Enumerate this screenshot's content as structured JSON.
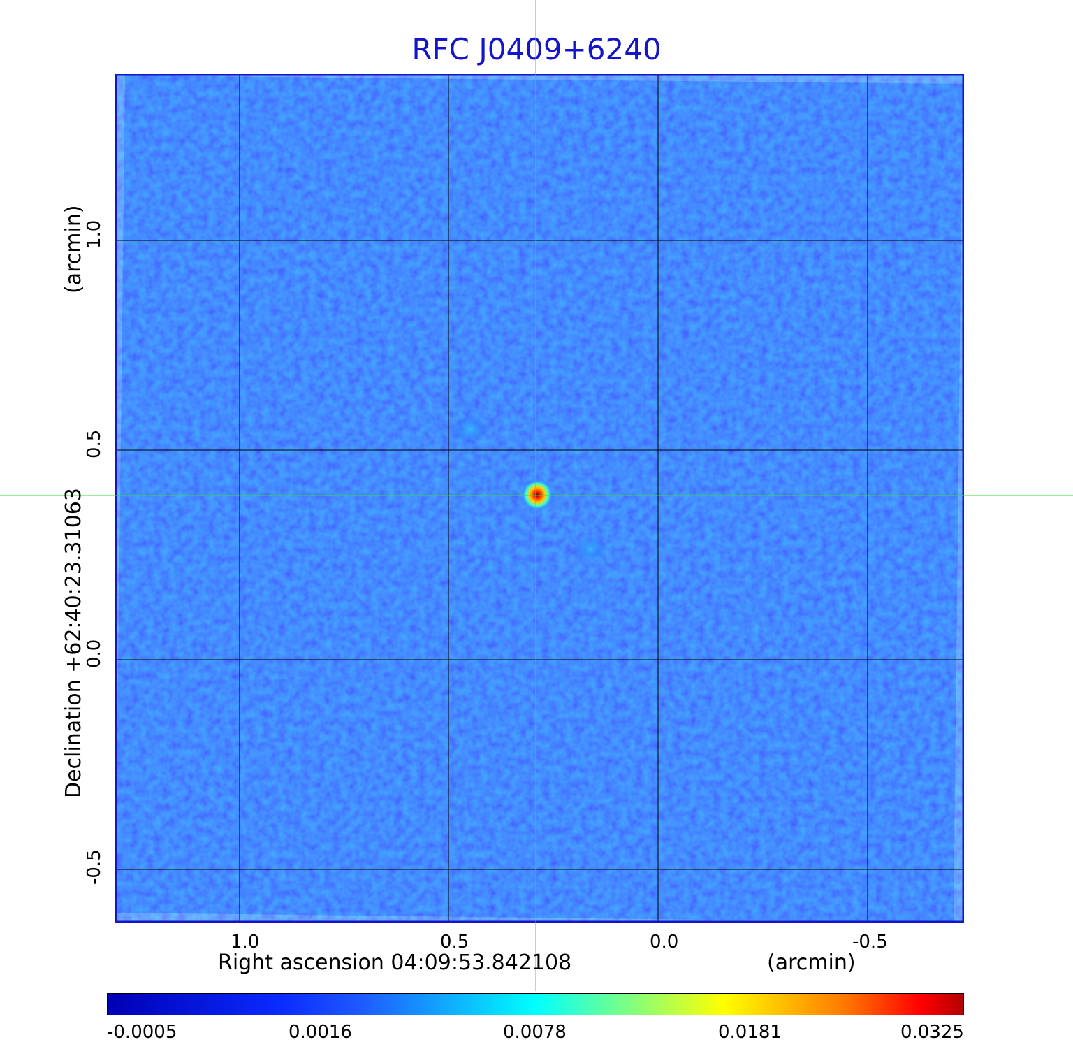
{
  "title": "RFC J0409+6240",
  "x_axis": {
    "label": "Right ascension  04:09:53.842108",
    "unit": "(arcmin)",
    "ticks": [
      "1.0",
      "0.5",
      "0.0",
      "-0.5"
    ]
  },
  "y_axis": {
    "label": "Declination  +62:40:23.31063",
    "unit": "(arcmin)",
    "ticks": [
      "1.0",
      "0.5",
      "0.0",
      "-0.5"
    ]
  },
  "colorbar": {
    "ticks": [
      "-0.0005",
      "0.0016",
      "0.0078",
      "0.0181",
      "0.0325"
    ]
  },
  "colors": {
    "title": "#1414c8",
    "frame": "#1414c8",
    "crosshair": "#33dd33",
    "background_field": "#1f4fff"
  }
}
